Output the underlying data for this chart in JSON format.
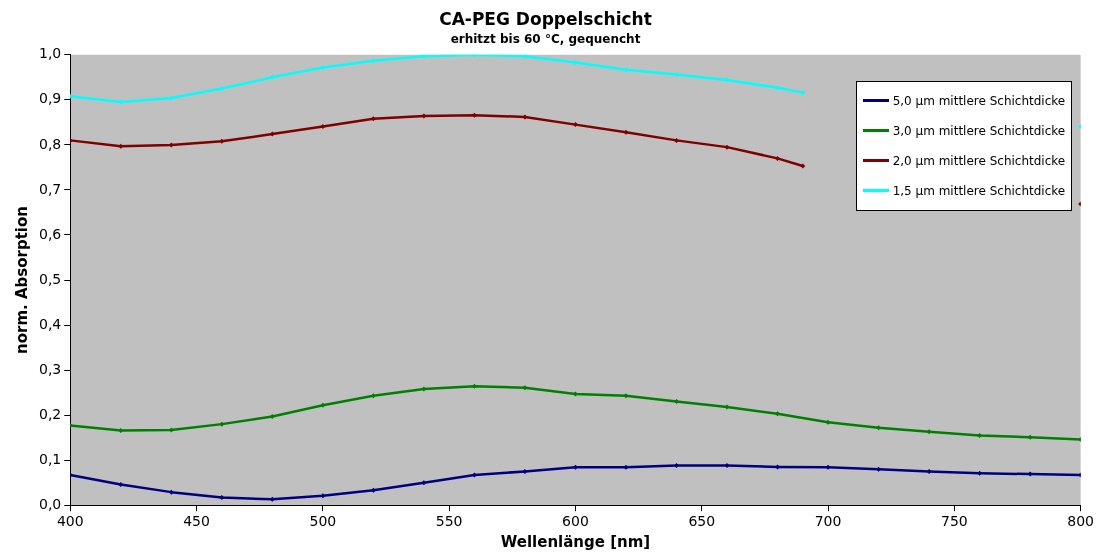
{
  "chart_data": {
    "type": "line",
    "title": "CA-PEG Doppelschicht",
    "subtitle": "erhitzt bis 60 °C, gequencht",
    "xlabel": "Wellenlänge [nm]",
    "ylabel": "norm. Absorption",
    "xlim": [
      400,
      800
    ],
    "xticks": [
      400,
      450,
      500,
      550,
      600,
      650,
      700,
      750,
      800
    ],
    "ylim": [
      0,
      1
    ],
    "yticks": [
      {
        "value": 0,
        "label": "0,0"
      },
      {
        "value": 0.1,
        "label": "0,1"
      },
      {
        "value": 0.2,
        "label": "0,2"
      },
      {
        "value": 0.3,
        "label": "0,3"
      },
      {
        "value": 0.4,
        "label": "0,4"
      },
      {
        "value": 0.5,
        "label": "0,5"
      },
      {
        "value": 0.6,
        "label": "0,6"
      },
      {
        "value": 0.7,
        "label": "0,7"
      },
      {
        "value": 0.8,
        "label": "0,8"
      },
      {
        "value": 0.9,
        "label": "0,9"
      },
      {
        "value": 1,
        "label": "1,0"
      }
    ],
    "grid": false,
    "legend": "top right",
    "marker": "diamond",
    "line_style": "solid",
    "series": [
      {
        "name": "5,0 µm mittlere Schichtdicke",
        "color": "#000080",
        "x": [
          400,
          420,
          440,
          460,
          480,
          500,
          520,
          540,
          560,
          580,
          600,
          620,
          640,
          660,
          680,
          700,
          720,
          740,
          760,
          780,
          800
        ],
        "values": [
          0.067,
          0.046,
          0.029,
          0.017,
          0.013,
          0.021,
          0.033,
          0.05,
          0.067,
          0.075,
          0.084,
          0.084,
          0.088,
          0.088,
          0.085,
          0.084,
          0.08,
          0.075,
          0.071,
          0.069,
          0.067
        ]
      },
      {
        "name": "3,0 µm mittlere Schichtdicke",
        "color": "#008000",
        "x": [
          400,
          420,
          440,
          460,
          480,
          500,
          520,
          540,
          560,
          580,
          600,
          620,
          640,
          660,
          680,
          700,
          720,
          740,
          760,
          780,
          800
        ],
        "values": [
          0.177,
          0.166,
          0.167,
          0.18,
          0.197,
          0.222,
          0.243,
          0.258,
          0.264,
          0.261,
          0.247,
          0.243,
          0.23,
          0.218,
          0.203,
          0.184,
          0.172,
          0.163,
          0.155,
          0.151,
          0.146
        ]
      },
      {
        "name": "2,0 µm mittlere Schichtdicke",
        "color": "#800000",
        "x": [
          400,
          420,
          440,
          460,
          480,
          500,
          520,
          540,
          560,
          580,
          600,
          620,
          640,
          660,
          680,
          690,
          700,
          800
        ],
        "values": [
          0.81,
          0.797,
          0.8,
          0.808,
          0.824,
          0.841,
          0.858,
          0.864,
          0.866,
          0.862,
          0.845,
          0.828,
          0.81,
          0.795,
          0.77,
          0.753,
          null,
          0.669
        ]
      },
      {
        "name": "1,5 µm mittlere Schichtdicke",
        "color": "#00ffff",
        "x": [
          400,
          420,
          440,
          460,
          480,
          500,
          520,
          540,
          560,
          580,
          600,
          620,
          640,
          660,
          680,
          690,
          700,
          800
        ],
        "values": [
          0.908,
          0.895,
          0.904,
          0.925,
          0.95,
          0.972,
          0.987,
          0.997,
          1.0,
          0.997,
          0.983,
          0.967,
          0.956,
          0.944,
          0.927,
          0.916,
          null,
          0.841
        ]
      }
    ]
  }
}
